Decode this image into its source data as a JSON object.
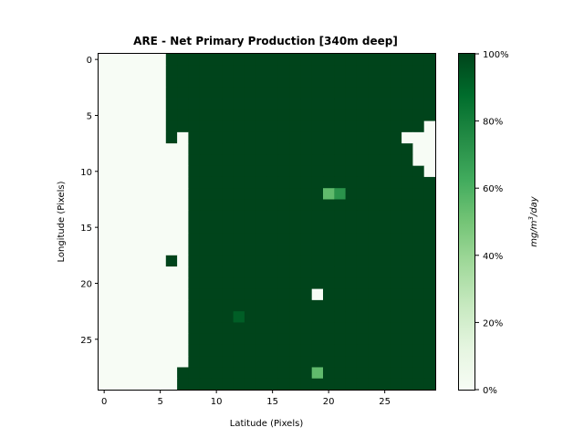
{
  "chart_data": {
    "type": "heatmap",
    "title": "ARE - Net Primary Production [340m deep]",
    "xlabel": "Latitude (Pixels)",
    "ylabel": "Longitude (Pixels)",
    "x_ticks": [
      "0",
      "5",
      "10",
      "15",
      "20",
      "25"
    ],
    "y_ticks": [
      "0",
      "5",
      "10",
      "15",
      "20",
      "25"
    ],
    "grid": false,
    "colormap": "Greens",
    "colormap_low": "#f7fcf5",
    "colormap_high": "#00441b",
    "colorbar": {
      "label_math": "mg/m",
      "label_exp": "3",
      "label_tail": "/day",
      "ticks": [
        "0%",
        "20%",
        "40%",
        "60%",
        "80%",
        "100%"
      ],
      "range": [
        0,
        100
      ],
      "placement": "right"
    },
    "grid_size": {
      "cols": 30,
      "rows": 30
    },
    "masked_value": 0,
    "left_boundary_by_row": [
      5,
      5,
      5,
      5,
      5,
      5,
      6,
      6,
      7,
      7,
      7,
      7,
      7,
      7,
      7,
      7,
      7,
      7,
      7,
      7,
      7,
      7,
      7,
      7,
      7,
      7,
      7,
      7,
      6,
      6
    ],
    "right_boundary_by_row": [
      29,
      29,
      29,
      29,
      29,
      29,
      29,
      29,
      29,
      29,
      29,
      29,
      29,
      29,
      29,
      29,
      29,
      29,
      29,
      29,
      29,
      29,
      29,
      29,
      29,
      29,
      29,
      29,
      29,
      29
    ],
    "empty_cells": [
      [
        6,
        29
      ],
      [
        7,
        27
      ],
      [
        7,
        28
      ],
      [
        7,
        29
      ],
      [
        8,
        28
      ],
      [
        8,
        29
      ],
      [
        9,
        28
      ],
      [
        9,
        29
      ],
      [
        10,
        29
      ],
      [
        7,
        7
      ],
      [
        18,
        7
      ],
      [
        21,
        19
      ]
    ],
    "filled_cells": [
      [
        6,
        6
      ],
      [
        7,
        6
      ],
      [
        18,
        6
      ]
    ],
    "anomalies": [
      {
        "row": 12,
        "col": 20,
        "value": 55
      },
      {
        "row": 12,
        "col": 21,
        "value": 72
      },
      {
        "row": 23,
        "col": 12,
        "value": 92
      },
      {
        "row": 28,
        "col": 19,
        "value": 55
      }
    ],
    "base_value": 100
  }
}
